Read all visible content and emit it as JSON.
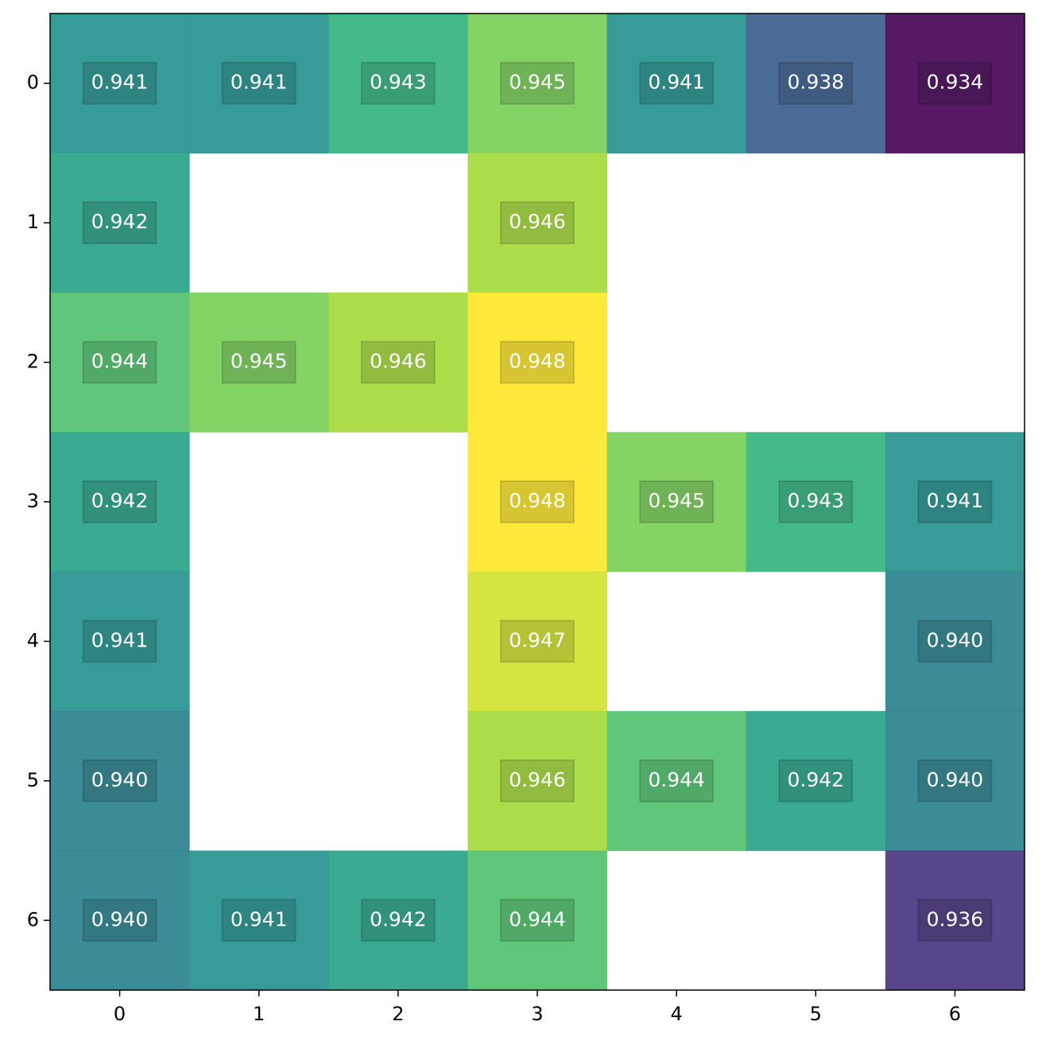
{
  "chart_data": {
    "type": "heatmap",
    "xlim": [
      -0.5,
      6.5
    ],
    "ylim": [
      6.5,
      -0.5
    ],
    "xticks": [
      0,
      1,
      2,
      3,
      4,
      5,
      6
    ],
    "yticks": [
      0,
      1,
      2,
      3,
      4,
      5,
      6
    ],
    "colormap": "viridis",
    "clim": [
      0.934,
      0.948
    ],
    "values": [
      [
        0.941,
        0.941,
        0.943,
        0.945,
        0.941,
        0.938,
        0.934
      ],
      [
        0.942,
        null,
        null,
        0.946,
        null,
        null,
        null
      ],
      [
        0.944,
        0.945,
        0.946,
        0.948,
        null,
        null,
        null
      ],
      [
        0.942,
        null,
        null,
        0.948,
        0.945,
        0.943,
        0.941
      ],
      [
        0.941,
        null,
        null,
        0.947,
        null,
        null,
        0.94
      ],
      [
        0.94,
        null,
        null,
        0.946,
        0.944,
        0.942,
        0.94
      ],
      [
        0.94,
        0.941,
        0.942,
        0.944,
        null,
        null,
        0.936
      ]
    ],
    "value_labels": [
      [
        "0.941",
        "0.941",
        "0.943",
        "0.945",
        "0.941",
        "0.938",
        "0.934"
      ],
      [
        "0.942",
        null,
        null,
        "0.946",
        null,
        null,
        null
      ],
      [
        "0.944",
        "0.945",
        "0.946",
        "0.948",
        null,
        null,
        null
      ],
      [
        "0.942",
        null,
        null,
        "0.948",
        "0.945",
        "0.943",
        "0.941"
      ],
      [
        "0.941",
        null,
        null,
        "0.947",
        null,
        null,
        "0.940"
      ],
      [
        "0.940",
        null,
        null,
        "0.946",
        "0.944",
        "0.942",
        "0.940"
      ],
      [
        "0.940",
        "0.941",
        "0.942",
        "0.944",
        null,
        null,
        "0.936"
      ]
    ]
  }
}
